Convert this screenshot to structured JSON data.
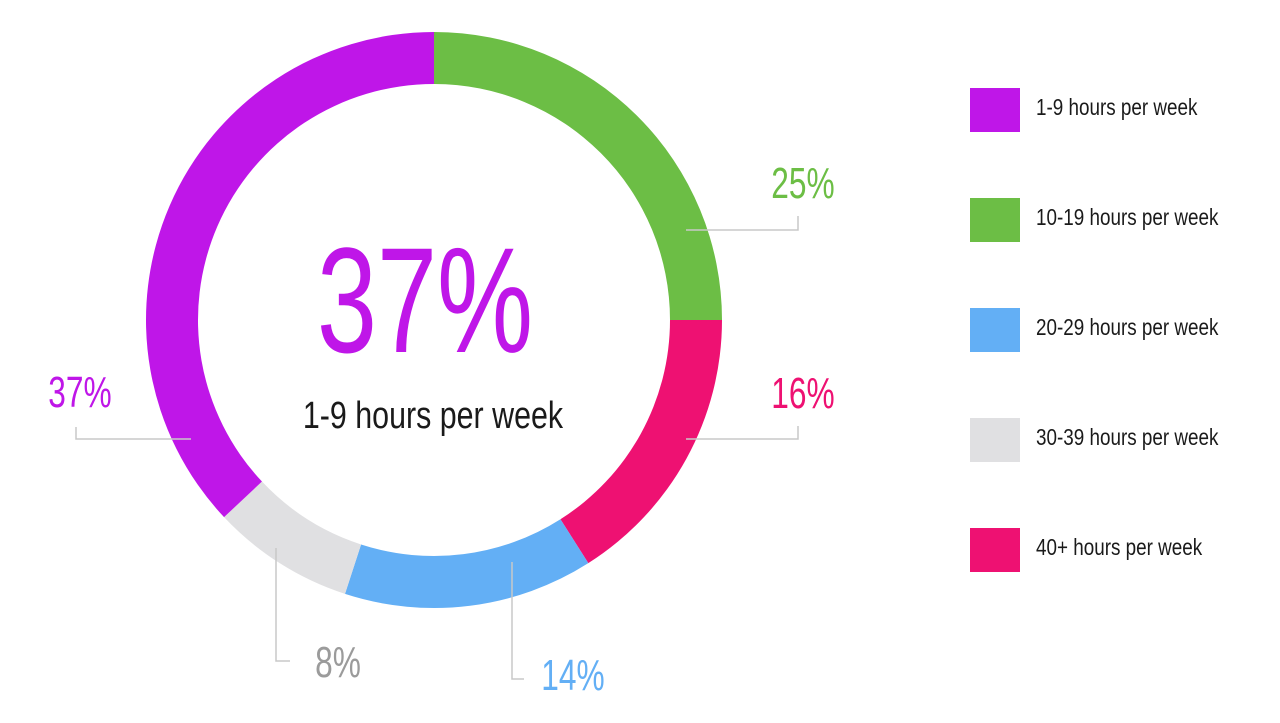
{
  "chart_data": {
    "type": "pie",
    "style": "donut",
    "center_value": "37%",
    "center_label": "1-9 hours per week",
    "slices": [
      {
        "label": "1-9 hours per week",
        "value": 37,
        "display": "37%",
        "color": "#bf16e8"
      },
      {
        "label": "10-19 hours per week",
        "value": 25,
        "display": "25%",
        "color": "#6cbe45"
      },
      {
        "label": "20-29 hours per week",
        "value": 14,
        "display": "14%",
        "color": "#63aff5"
      },
      {
        "label": "30-39 hours per week",
        "value": 8,
        "display": "8%",
        "color": "#e0e0e2"
      },
      {
        "label": "40+ hours per week",
        "value": 16,
        "display": "16%",
        "color": "#ee1172"
      }
    ],
    "label_colors": {
      "30-39 hours per week": "#9b9b9b"
    },
    "legend_position": "right"
  }
}
